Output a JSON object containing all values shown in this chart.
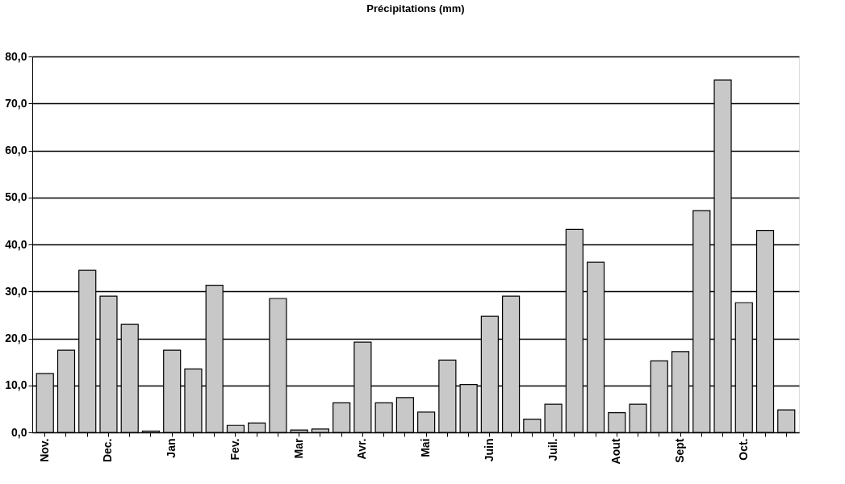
{
  "chart_data": {
    "type": "bar",
    "title": "Précipitations  (mm)",
    "categories": [
      "Nov.",
      null,
      null,
      "Dec.",
      null,
      null,
      "Jan",
      null,
      null,
      "Fev.",
      null,
      null,
      "Mar",
      null,
      null,
      "Avr.",
      null,
      null,
      "Mai",
      null,
      null,
      "Juin",
      null,
      null,
      "Juil.",
      null,
      null,
      "Aout",
      null,
      null,
      "Sept",
      null,
      null,
      "Oct.",
      null,
      null
    ],
    "values": [
      12.5,
      17.5,
      34.5,
      29,
      23,
      0.3,
      17.5,
      13.5,
      31.3,
      1.5,
      2,
      28.5,
      0.5,
      0.7,
      6.3,
      19.2,
      6.3,
      7.4,
      4.3,
      15.4,
      10.2,
      24.7,
      29,
      2.8,
      6,
      43.2,
      36.2,
      4.2,
      6,
      15.2,
      17.2,
      47.2,
      75,
      27.6,
      43,
      4.8
    ],
    "color": "#c8c8c8",
    "ylim": [
      0,
      80
    ],
    "yticks": [
      {
        "value": 0,
        "label": "0,0"
      },
      {
        "value": 10,
        "label": "10,0"
      },
      {
        "value": 20,
        "label": "20,0"
      },
      {
        "value": 30,
        "label": "30,0"
      },
      {
        "value": 40,
        "label": "40,0"
      },
      {
        "value": 50,
        "label": "50,0"
      },
      {
        "value": 60,
        "label": "60,0"
      },
      {
        "value": 70,
        "label": "70,0"
      },
      {
        "value": 80,
        "label": "80,0"
      }
    ],
    "grid": "y"
  }
}
